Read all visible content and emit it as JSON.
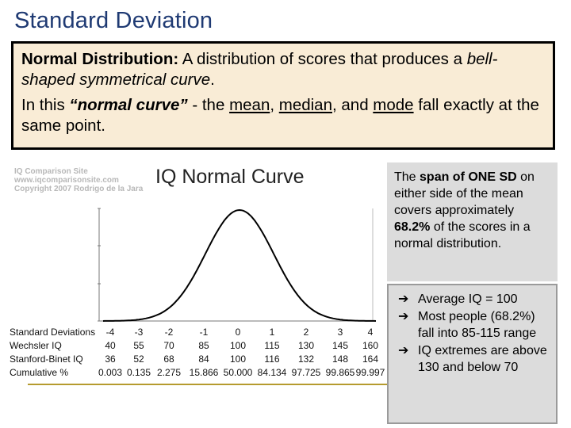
{
  "title": "Standard Deviation",
  "definition": {
    "term": "Normal Distribution:",
    "text_a": " A distribution of scores that produces a ",
    "text_b": "bell-shaped symmetrical curve",
    "text_c": ".",
    "p2_a": "In this ",
    "p2_b": "“normal curve”",
    "p2_c": " - the ",
    "mean": "mean",
    "sep1": ", ",
    "median": "median",
    "sep2": ", and ",
    "mode": "mode",
    "p2_d": " fall exactly at the same point."
  },
  "figure": {
    "site_lines": [
      "IQ Comparison Site",
      "www.iqcomparisonsite.com",
      "Copyright 2007 Rodrigo de la Jara"
    ],
    "title": "IQ Normal Curve",
    "rows": [
      {
        "label": "Standard Deviations",
        "values": [
          "-4",
          "-3",
          "-2",
          "-1",
          "0",
          "1",
          "2",
          "3",
          "4"
        ]
      },
      {
        "label": "Wechsler IQ",
        "values": [
          "40",
          "55",
          "70",
          "85",
          "100",
          "115",
          "130",
          "145",
          "160"
        ]
      },
      {
        "label": "Stanford-Binet IQ",
        "values": [
          "36",
          "52",
          "68",
          "84",
          "100",
          "116",
          "132",
          "148",
          "164"
        ]
      },
      {
        "label": "Cumulative %",
        "values": [
          "0.003",
          "0.135",
          "2.275",
          "15.866",
          "50.000",
          "84.134",
          "97.725",
          "99.865",
          "99.997"
        ]
      }
    ]
  },
  "span": {
    "a": "The ",
    "b": "span of ONE SD",
    "c": " on either side of the mean covers approximately ",
    "d": "68.2%",
    "e": " of the scores in a normal distribution."
  },
  "bullets": {
    "arrow": "➔",
    "items": [
      "Average IQ = 100",
      "Most people (68.2%) fall into 85-115 range",
      "IQ extremes are above 130 and below 70"
    ]
  },
  "colors": {
    "title": "#1f3a73",
    "definition_bg": "#f9ecd6",
    "side_bg": "#dcdcdc",
    "footer_line": "#b59b2e"
  }
}
